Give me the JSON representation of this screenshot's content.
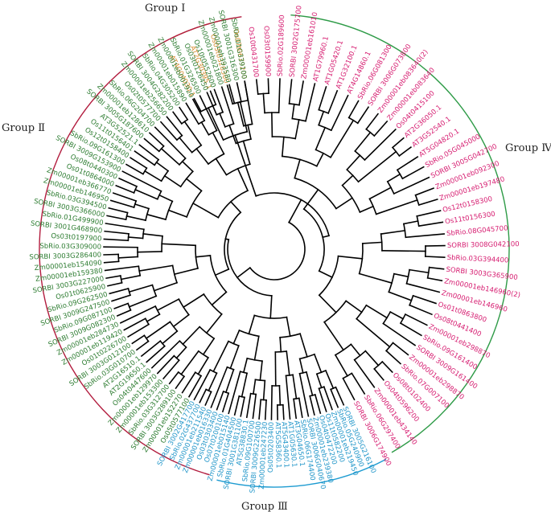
{
  "groups": [
    {
      "key": "I",
      "name": "Group Ⅰ",
      "color": "#C08A3E",
      "label_color": "#2a2a2a"
    },
    {
      "key": "II",
      "name": "Group Ⅱ",
      "color": "#B21C3E",
      "label_color": "#2a2a2a"
    },
    {
      "key": "III",
      "name": "Group Ⅲ",
      "color": "#1D9BD1",
      "label_color": "#2a2a2a"
    },
    {
      "key": "IV",
      "name": "Group Ⅳ",
      "color": "#2E9B47",
      "label_color": "#2a2a2a"
    }
  ],
  "leaf_colors": {
    "I": "#D7892B",
    "II": "#D61C70",
    "III": "#2196C9",
    "IV": "#2E7D32"
  },
  "leaves": [
    {
      "label": "Os07t0679200",
      "group": "I"
    },
    {
      "label": "Os03t0328300",
      "group": "I"
    },
    {
      "label": "AT2G30395.1",
      "group": "I"
    },
    {
      "label": "AT4G04030.1",
      "group": "I"
    },
    {
      "label": "SORBI 3006G174900",
      "group": "II"
    },
    {
      "label": "SbRio.06G297400",
      "group": "II"
    },
    {
      "label": "Zm00001eb434140",
      "group": "II"
    },
    {
      "label": "Os04t0596200",
      "group": "II"
    },
    {
      "label": "Os08t0102400",
      "group": "II"
    },
    {
      "label": "SbRio.07G007100",
      "group": "II"
    },
    {
      "label": "Zm00001eb298870",
      "group": "II"
    },
    {
      "label": "SORBI 3009G161400",
      "group": "II"
    },
    {
      "label": "SbRio.09G161400",
      "group": "II"
    },
    {
      "label": "Zm00001eb298870",
      "group": "II"
    },
    {
      "label": "Os08t0441400",
      "group": "II"
    },
    {
      "label": "Os01t0863800",
      "group": "II"
    },
    {
      "label": "Zm00001eb146960",
      "group": "II"
    },
    {
      "label": "Zm00001eb146960(2)",
      "group": "II"
    },
    {
      "label": "SORBI 3003G365900",
      "group": "II"
    },
    {
      "label": "SbRio.03G394400",
      "group": "II"
    },
    {
      "label": "SORBI 3008G042100",
      "group": "II"
    },
    {
      "label": "SbRio.08G045700",
      "group": "II"
    },
    {
      "label": "Os11t0156300",
      "group": "II"
    },
    {
      "label": "Os12t0158300",
      "group": "II"
    },
    {
      "label": "Zm00001eb197480",
      "group": "II"
    },
    {
      "label": "Zm00001eb092300",
      "group": "II"
    },
    {
      "label": "SORBI 3005G042700",
      "group": "II"
    },
    {
      "label": "SbRio.05G045000",
      "group": "II"
    },
    {
      "label": "AT5G04820.1",
      "group": "II"
    },
    {
      "label": "AT3G52540.1",
      "group": "II"
    },
    {
      "label": "AT2G36050.1",
      "group": "II"
    },
    {
      "label": "Os04t0415100",
      "group": "II"
    },
    {
      "label": "Zm00001eb083640",
      "group": "II"
    },
    {
      "label": "Zm00001eb083640(2)",
      "group": "II"
    },
    {
      "label": "SORBI 3006G073800",
      "group": "II"
    },
    {
      "label": "SbRio.06G081300",
      "group": "II"
    },
    {
      "label": "AT4G14860.1",
      "group": "II"
    },
    {
      "label": "AT1G32100.1",
      "group": "II"
    },
    {
      "label": "AT1G05420.1",
      "group": "II"
    },
    {
      "label": "AT1G79960.1",
      "group": "II"
    },
    {
      "label": "Zm00001eb161010",
      "group": "II"
    },
    {
      "label": "SORBI 3002G175700",
      "group": "II"
    },
    {
      "label": "SbRio.02G189600",
      "group": "II"
    },
    {
      "label": "Os03t0159900",
      "group": "II"
    },
    {
      "label": "Os10t0431700",
      "group": "II"
    },
    {
      "label": "SORBI 3005G216100",
      "group": "III"
    },
    {
      "label": "SbRio.05G240900",
      "group": "III"
    },
    {
      "label": "Zm00001eb219450",
      "group": "III"
    },
    {
      "label": "Os11t0582200",
      "group": "III"
    },
    {
      "label": "Os04t0472200",
      "group": "III"
    },
    {
      "label": "Zm00001eb239380",
      "group": "III"
    },
    {
      "label": "SORBI 3006G040670",
      "group": "III"
    },
    {
      "label": "SbRio.06G174400",
      "group": "III"
    },
    {
      "label": "AT3G04650.1",
      "group": "III"
    },
    {
      "label": "AT1G05630.1",
      "group": "III"
    },
    {
      "label": "AT5G43400.1",
      "group": "III"
    },
    {
      "label": "AT5G58360.1",
      "group": "III"
    },
    {
      "label": "Os05t0203400",
      "group": "III"
    },
    {
      "label": "Zm00001eb247230",
      "group": "III"
    },
    {
      "label": "SORBI 3009G226500",
      "group": "III"
    },
    {
      "label": "SbRio.09G100700",
      "group": "III"
    },
    {
      "label": "AT5G38830.1",
      "group": "III"
    },
    {
      "label": "SORBI 3001G381100",
      "group": "III"
    },
    {
      "label": "SbRio.01G404500",
      "group": "III"
    },
    {
      "label": "Zm00001eb015140",
      "group": "III"
    },
    {
      "label": "Os07t0200100",
      "group": "III"
    },
    {
      "label": "Os03t0303400",
      "group": "III"
    },
    {
      "label": "Zm00001eb016330",
      "group": "III"
    },
    {
      "label": "Zm00001eb211540",
      "group": "III"
    },
    {
      "label": "SbRio.02G437700",
      "group": "III"
    },
    {
      "label": "SORBI 3002G417700",
      "group": "III"
    },
    {
      "label": "Os05t0577100",
      "group": "IV"
    },
    {
      "label": "Zm00001eb152270",
      "group": "IV"
    },
    {
      "label": "SORBI 3003G289100",
      "group": "IV"
    },
    {
      "label": "SbRio.03G312700",
      "group": "IV"
    },
    {
      "label": "Zm00001eb153300",
      "group": "IV"
    },
    {
      "label": "Zm00001eb129970",
      "group": "IV"
    },
    {
      "label": "Os04t0447600",
      "group": "IV"
    },
    {
      "label": "AT2G19650.1",
      "group": "IV"
    },
    {
      "label": "AT2G16510.1",
      "group": "IV"
    },
    {
      "label": "SbRio.03G010700",
      "group": "IV"
    },
    {
      "label": "SORBI 3003G012100",
      "group": "IV"
    },
    {
      "label": "Os01t0226700",
      "group": "IV"
    },
    {
      "label": "Zm00001eb119420",
      "group": "IV"
    },
    {
      "label": "Zm00001eb284730",
      "group": "IV"
    },
    {
      "label": "SORBI 3009G082300",
      "group": "IV"
    },
    {
      "label": "SbRio.09G087100",
      "group": "IV"
    },
    {
      "label": "SORBI 3009G247500",
      "group": "IV"
    },
    {
      "label": "SbRio.09G262500",
      "group": "IV"
    },
    {
      "label": "Os01t0625900",
      "group": "IV"
    },
    {
      "label": "SORBI 3003G227000",
      "group": "IV"
    },
    {
      "label": "Zm00001eb159380",
      "group": "IV"
    },
    {
      "label": "Zm00001eb154090",
      "group": "IV"
    },
    {
      "label": "SORBI 3003G286400",
      "group": "IV"
    },
    {
      "label": "SbRio.03G309000",
      "group": "IV"
    },
    {
      "label": "Os03t0197900",
      "group": "IV"
    },
    {
      "label": "SORBI 3001G468900",
      "group": "IV"
    },
    {
      "label": "SbRio.01G499900",
      "group": "IV"
    },
    {
      "label": "SORBI 3003G366000",
      "group": "IV"
    },
    {
      "label": "SbRio.03G394500",
      "group": "IV"
    },
    {
      "label": "Zm00001eb146950",
      "group": "IV"
    },
    {
      "label": "Zm00001eb366770",
      "group": "IV"
    },
    {
      "label": "Os01t0864000",
      "group": "IV"
    },
    {
      "label": "Os08t0440300",
      "group": "IV"
    },
    {
      "label": "SORBI 3009G153900",
      "group": "IV"
    },
    {
      "label": "SbRio.09G161300",
      "group": "IV"
    },
    {
      "label": "Os12t0158400",
      "group": "IV"
    },
    {
      "label": "Os11t0156401",
      "group": "IV"
    },
    {
      "label": "AT3G52521.1",
      "group": "IV"
    },
    {
      "label": "SORBI 3005G187600",
      "group": "IV"
    },
    {
      "label": "Zm00001eb128610",
      "group": "IV"
    },
    {
      "label": "SbRio.06G204700",
      "group": "IV"
    },
    {
      "label": "Os02t0577700",
      "group": "IV"
    },
    {
      "label": "Zm00001eb256650",
      "group": "IV"
    },
    {
      "label": "SORBI 3004G282200",
      "group": "IV"
    },
    {
      "label": "SbRio.04G305200",
      "group": "IV"
    },
    {
      "label": "Zm00001eb015890",
      "group": "IV"
    },
    {
      "label": "Zm00001eb001920",
      "group": "IV"
    },
    {
      "label": "SbRio.01G326500",
      "group": "IV"
    },
    {
      "label": "Os03t0126450",
      "group": "IV"
    },
    {
      "label": "Os10t0552600",
      "group": "IV"
    },
    {
      "label": "Zm00001eb021800",
      "group": "IV"
    },
    {
      "label": "Zm00001eb393580",
      "group": "IV"
    },
    {
      "label": "SORBI 3001G316300",
      "group": "IV"
    },
    {
      "label": "SbRio.01G339100",
      "group": "IV"
    }
  ]
}
